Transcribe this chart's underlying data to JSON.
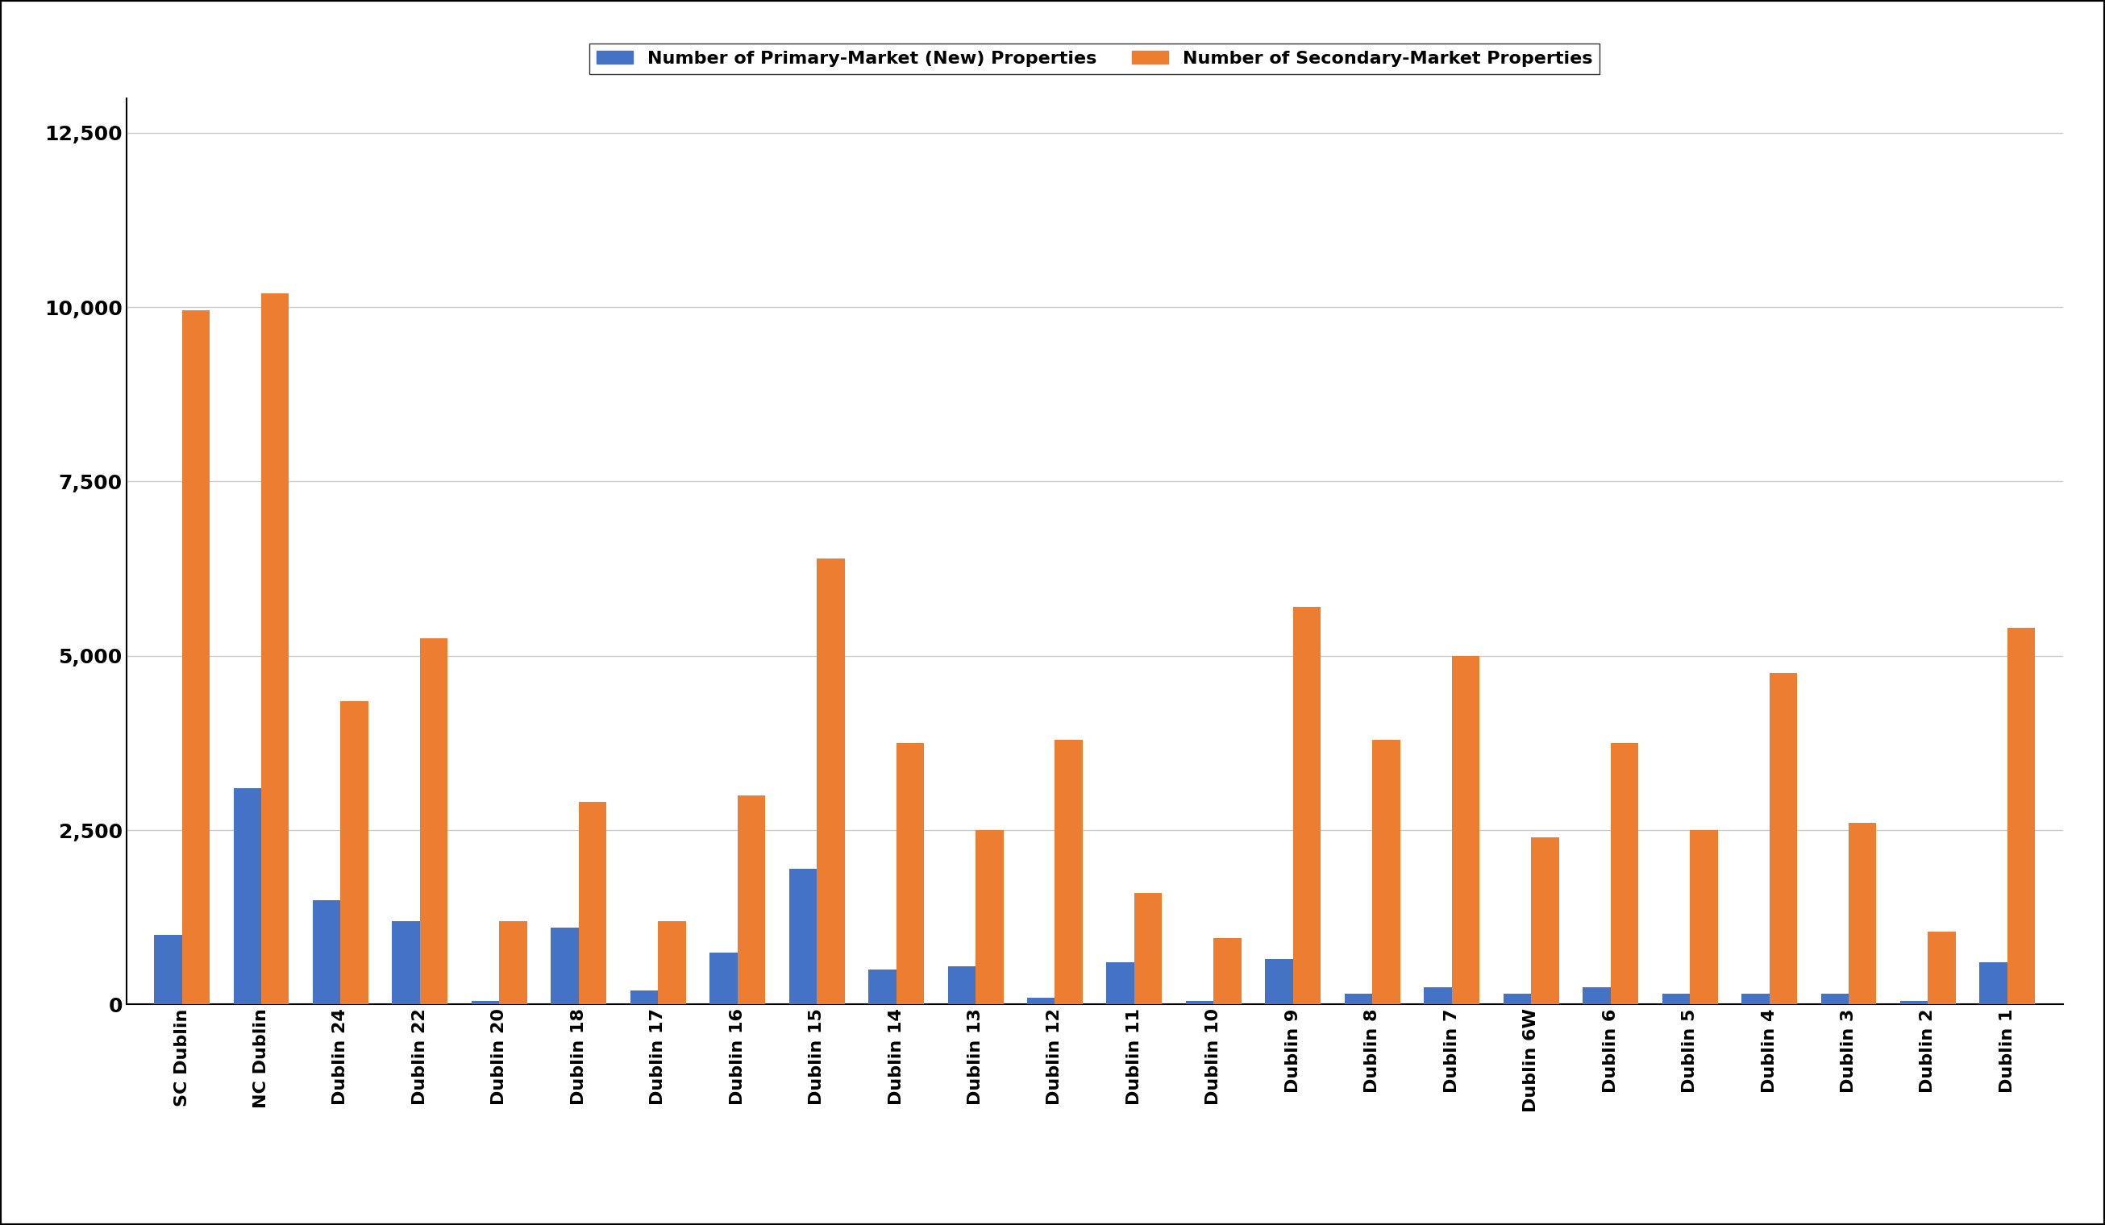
{
  "categories": [
    "SC Dublin",
    "NC Dublin",
    "Dublin 24",
    "Dublin 22",
    "Dublin 20",
    "Dublin 18",
    "Dublin 17",
    "Dublin 16",
    "Dublin 15",
    "Dublin 14",
    "Dublin 13",
    "Dublin 12",
    "Dublin 11",
    "Dublin 10",
    "Dublin 9",
    "Dublin 8",
    "Dublin 7",
    "Dublin 6W",
    "Dublin 6",
    "Dublin 5",
    "Dublin 4",
    "Dublin 3",
    "Dublin 2",
    "Dublin 1"
  ],
  "primary": [
    1000,
    3100,
    1500,
    1200,
    50,
    1100,
    200,
    750,
    1950,
    500,
    550,
    100,
    600,
    50,
    650,
    150,
    250,
    150,
    250,
    150,
    150,
    150,
    50,
    600
  ],
  "secondary": [
    9950,
    10200,
    4350,
    5250,
    1200,
    2900,
    1200,
    3000,
    6400,
    3750,
    2500,
    3800,
    1600,
    950,
    5700,
    3800,
    5000,
    2400,
    3750,
    2500,
    4750,
    2600,
    1050,
    5400
  ],
  "primary_color": "#4472C4",
  "secondary_color": "#ED7D31",
  "legend_primary": "Number of Primary-Market (New) Properties",
  "legend_secondary": "Number of Secondary-Market Properties",
  "ylim": [
    0,
    13000
  ],
  "yticks": [
    0,
    2500,
    5000,
    7500,
    10000,
    12500
  ],
  "background_color": "#ffffff",
  "grid_color": "#cccccc",
  "bar_width": 0.35
}
